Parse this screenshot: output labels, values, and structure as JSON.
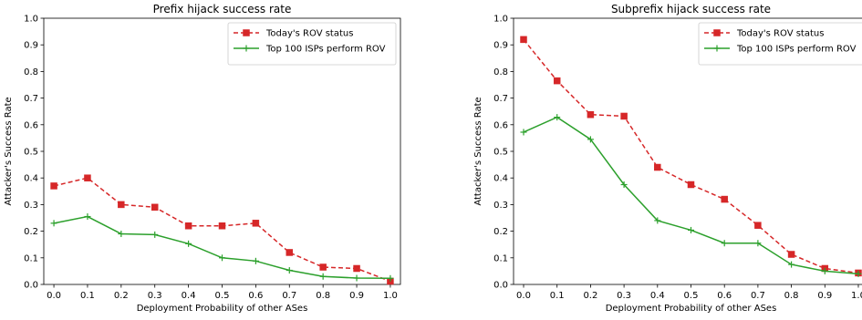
{
  "chart_data": [
    {
      "type": "line",
      "title": "Prefix hijack success rate",
      "xlabel": "Deployment Probability of other ASes",
      "ylabel": "Attacker's Success Rate",
      "xlim": [
        -0.03,
        1.03
      ],
      "ylim": [
        0.0,
        1.0
      ],
      "xticks": [
        "0.0",
        "0.1",
        "0.2",
        "0.3",
        "0.4",
        "0.5",
        "0.6",
        "0.7",
        "0.8",
        "0.9",
        "1.0"
      ],
      "yticks": [
        "0.0",
        "0.1",
        "0.2",
        "0.3",
        "0.4",
        "0.5",
        "0.6",
        "0.7",
        "0.8",
        "0.9",
        "1.0"
      ],
      "legend_position": "top-right",
      "x": [
        0.0,
        0.1,
        0.2,
        0.3,
        0.4,
        0.5,
        0.6,
        0.7,
        0.8,
        0.9,
        1.0
      ],
      "series": [
        {
          "name": "Today's ROV status",
          "color": "#d62728",
          "style": "dashed",
          "marker": "square",
          "values": [
            0.37,
            0.4,
            0.3,
            0.29,
            0.22,
            0.22,
            0.23,
            0.12,
            0.065,
            0.06,
            0.012
          ]
        },
        {
          "name": "Top 100 ISPs perform ROV",
          "color": "#2ca02c",
          "style": "solid",
          "marker": "plus",
          "values": [
            0.23,
            0.255,
            0.19,
            0.187,
            0.153,
            0.1,
            0.088,
            0.053,
            0.03,
            0.024,
            0.023
          ]
        }
      ]
    },
    {
      "type": "line",
      "title": "Subprefix hijack success rate",
      "xlabel": "Deployment Probability of other ASes",
      "ylabel": "Attacker's Success Rate",
      "xlim": [
        -0.03,
        1.03
      ],
      "ylim": [
        0.0,
        1.0
      ],
      "xticks": [
        "0.0",
        "0.1",
        "0.2",
        "0.3",
        "0.4",
        "0.5",
        "0.6",
        "0.7",
        "0.8",
        "0.9",
        "1.0"
      ],
      "yticks": [
        "0.0",
        "0.1",
        "0.2",
        "0.3",
        "0.4",
        "0.5",
        "0.6",
        "0.7",
        "0.8",
        "0.9",
        "1.0"
      ],
      "legend_position": "top-right",
      "x": [
        0.0,
        0.1,
        0.2,
        0.3,
        0.4,
        0.5,
        0.6,
        0.7,
        0.8,
        0.9,
        1.0
      ],
      "series": [
        {
          "name": "Today's ROV status",
          "color": "#d62728",
          "style": "dashed",
          "marker": "square",
          "values": [
            0.92,
            0.765,
            0.638,
            0.632,
            0.44,
            0.375,
            0.32,
            0.222,
            0.113,
            0.06,
            0.043
          ]
        },
        {
          "name": "Top 100 ISPs perform ROV",
          "color": "#2ca02c",
          "style": "solid",
          "marker": "plus",
          "values": [
            0.572,
            0.628,
            0.545,
            0.375,
            0.24,
            0.204,
            0.155,
            0.155,
            0.075,
            0.05,
            0.04
          ]
        }
      ]
    }
  ]
}
